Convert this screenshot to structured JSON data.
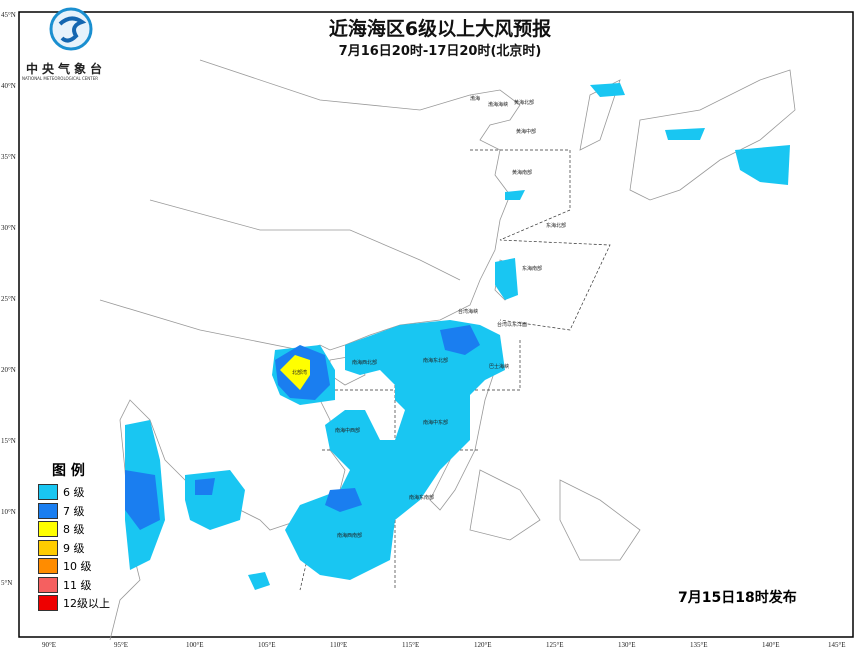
{
  "header": {
    "title": "近海海区6级以上大风预报",
    "subtitle": "7月16日20时-17日20时(北京时)"
  },
  "logo": {
    "name_cn": "中央气象台",
    "name_en": "NATIONAL METEOROLOGICAL CENTER"
  },
  "axes": {
    "lat_labels": [
      "45°N",
      "40°N",
      "35°N",
      "30°N",
      "25°N",
      "20°N",
      "15°N",
      "10°N",
      "5°N"
    ],
    "lon_labels": [
      "90°E",
      "95°E",
      "100°E",
      "105°E",
      "110°E",
      "115°E",
      "120°E",
      "125°E",
      "130°E",
      "135°E",
      "140°E",
      "145°E"
    ]
  },
  "sea_regions": [
    "渤海",
    "渤海海峡",
    "黄海北部",
    "黄海中部",
    "黄海南部",
    "东海北部",
    "东海南部",
    "台湾海峡",
    "台湾以东洋面",
    "北部湾",
    "南海西北部",
    "南海东北部",
    "巴士海峡",
    "南海中西部",
    "南海中东部",
    "南海西南部",
    "南海东南部"
  ],
  "legend": {
    "title": "图 例",
    "items": [
      {
        "label": "6 级",
        "color": "#19c6f2"
      },
      {
        "label": "7 级",
        "color": "#1a7ef0"
      },
      {
        "label": "8 级",
        "color": "#ffff00"
      },
      {
        "label": "9 级",
        "color": "#ffcc00"
      },
      {
        "label": "10 级",
        "color": "#ff8c00"
      },
      {
        "label": "11 级",
        "color": "#f56060"
      },
      {
        "label": "12级以上",
        "color": "#ee0000"
      }
    ]
  },
  "issued": "7月15日18时发布"
}
